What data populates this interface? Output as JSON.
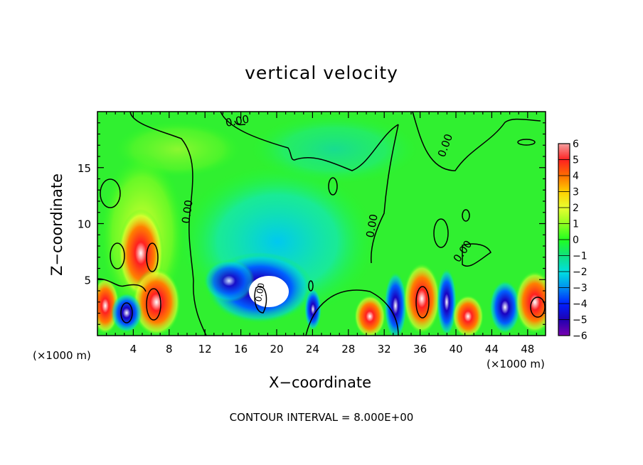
{
  "chart_data": {
    "type": "heatmap",
    "title": "vertical velocity",
    "xlabel": "X−coordinate",
    "ylabel": "Z−coordinate",
    "x_unit_label": "(×1000 m)",
    "xlim": [
      0,
      50
    ],
    "ylim": [
      0,
      20
    ],
    "x_ticks": [
      4,
      8,
      12,
      16,
      20,
      24,
      28,
      32,
      36,
      40,
      44,
      48
    ],
    "y_ticks": [
      5,
      10,
      15
    ],
    "colorbar": {
      "ticks": [
        "6",
        "5",
        "4",
        "3",
        "2",
        "1",
        "0",
        "−1",
        "−2",
        "−3",
        "−4",
        "−5",
        "−6"
      ],
      "colors": [
        "#f4a0a0",
        "#ff2020",
        "#ff7000",
        "#ffd000",
        "#e8ff30",
        "#90ff20",
        "#20ff20",
        "#10e080",
        "#00e0e0",
        "#0090f0",
        "#0020ff",
        "#2000b0",
        "#7a00b0"
      ]
    },
    "contour_labels": [
      "0.00",
      "0.00",
      "0.00",
      "0.00",
      "0.00",
      "0.00"
    ],
    "annotation": "CONTOUR INTERVAL = 8.000E+00"
  }
}
